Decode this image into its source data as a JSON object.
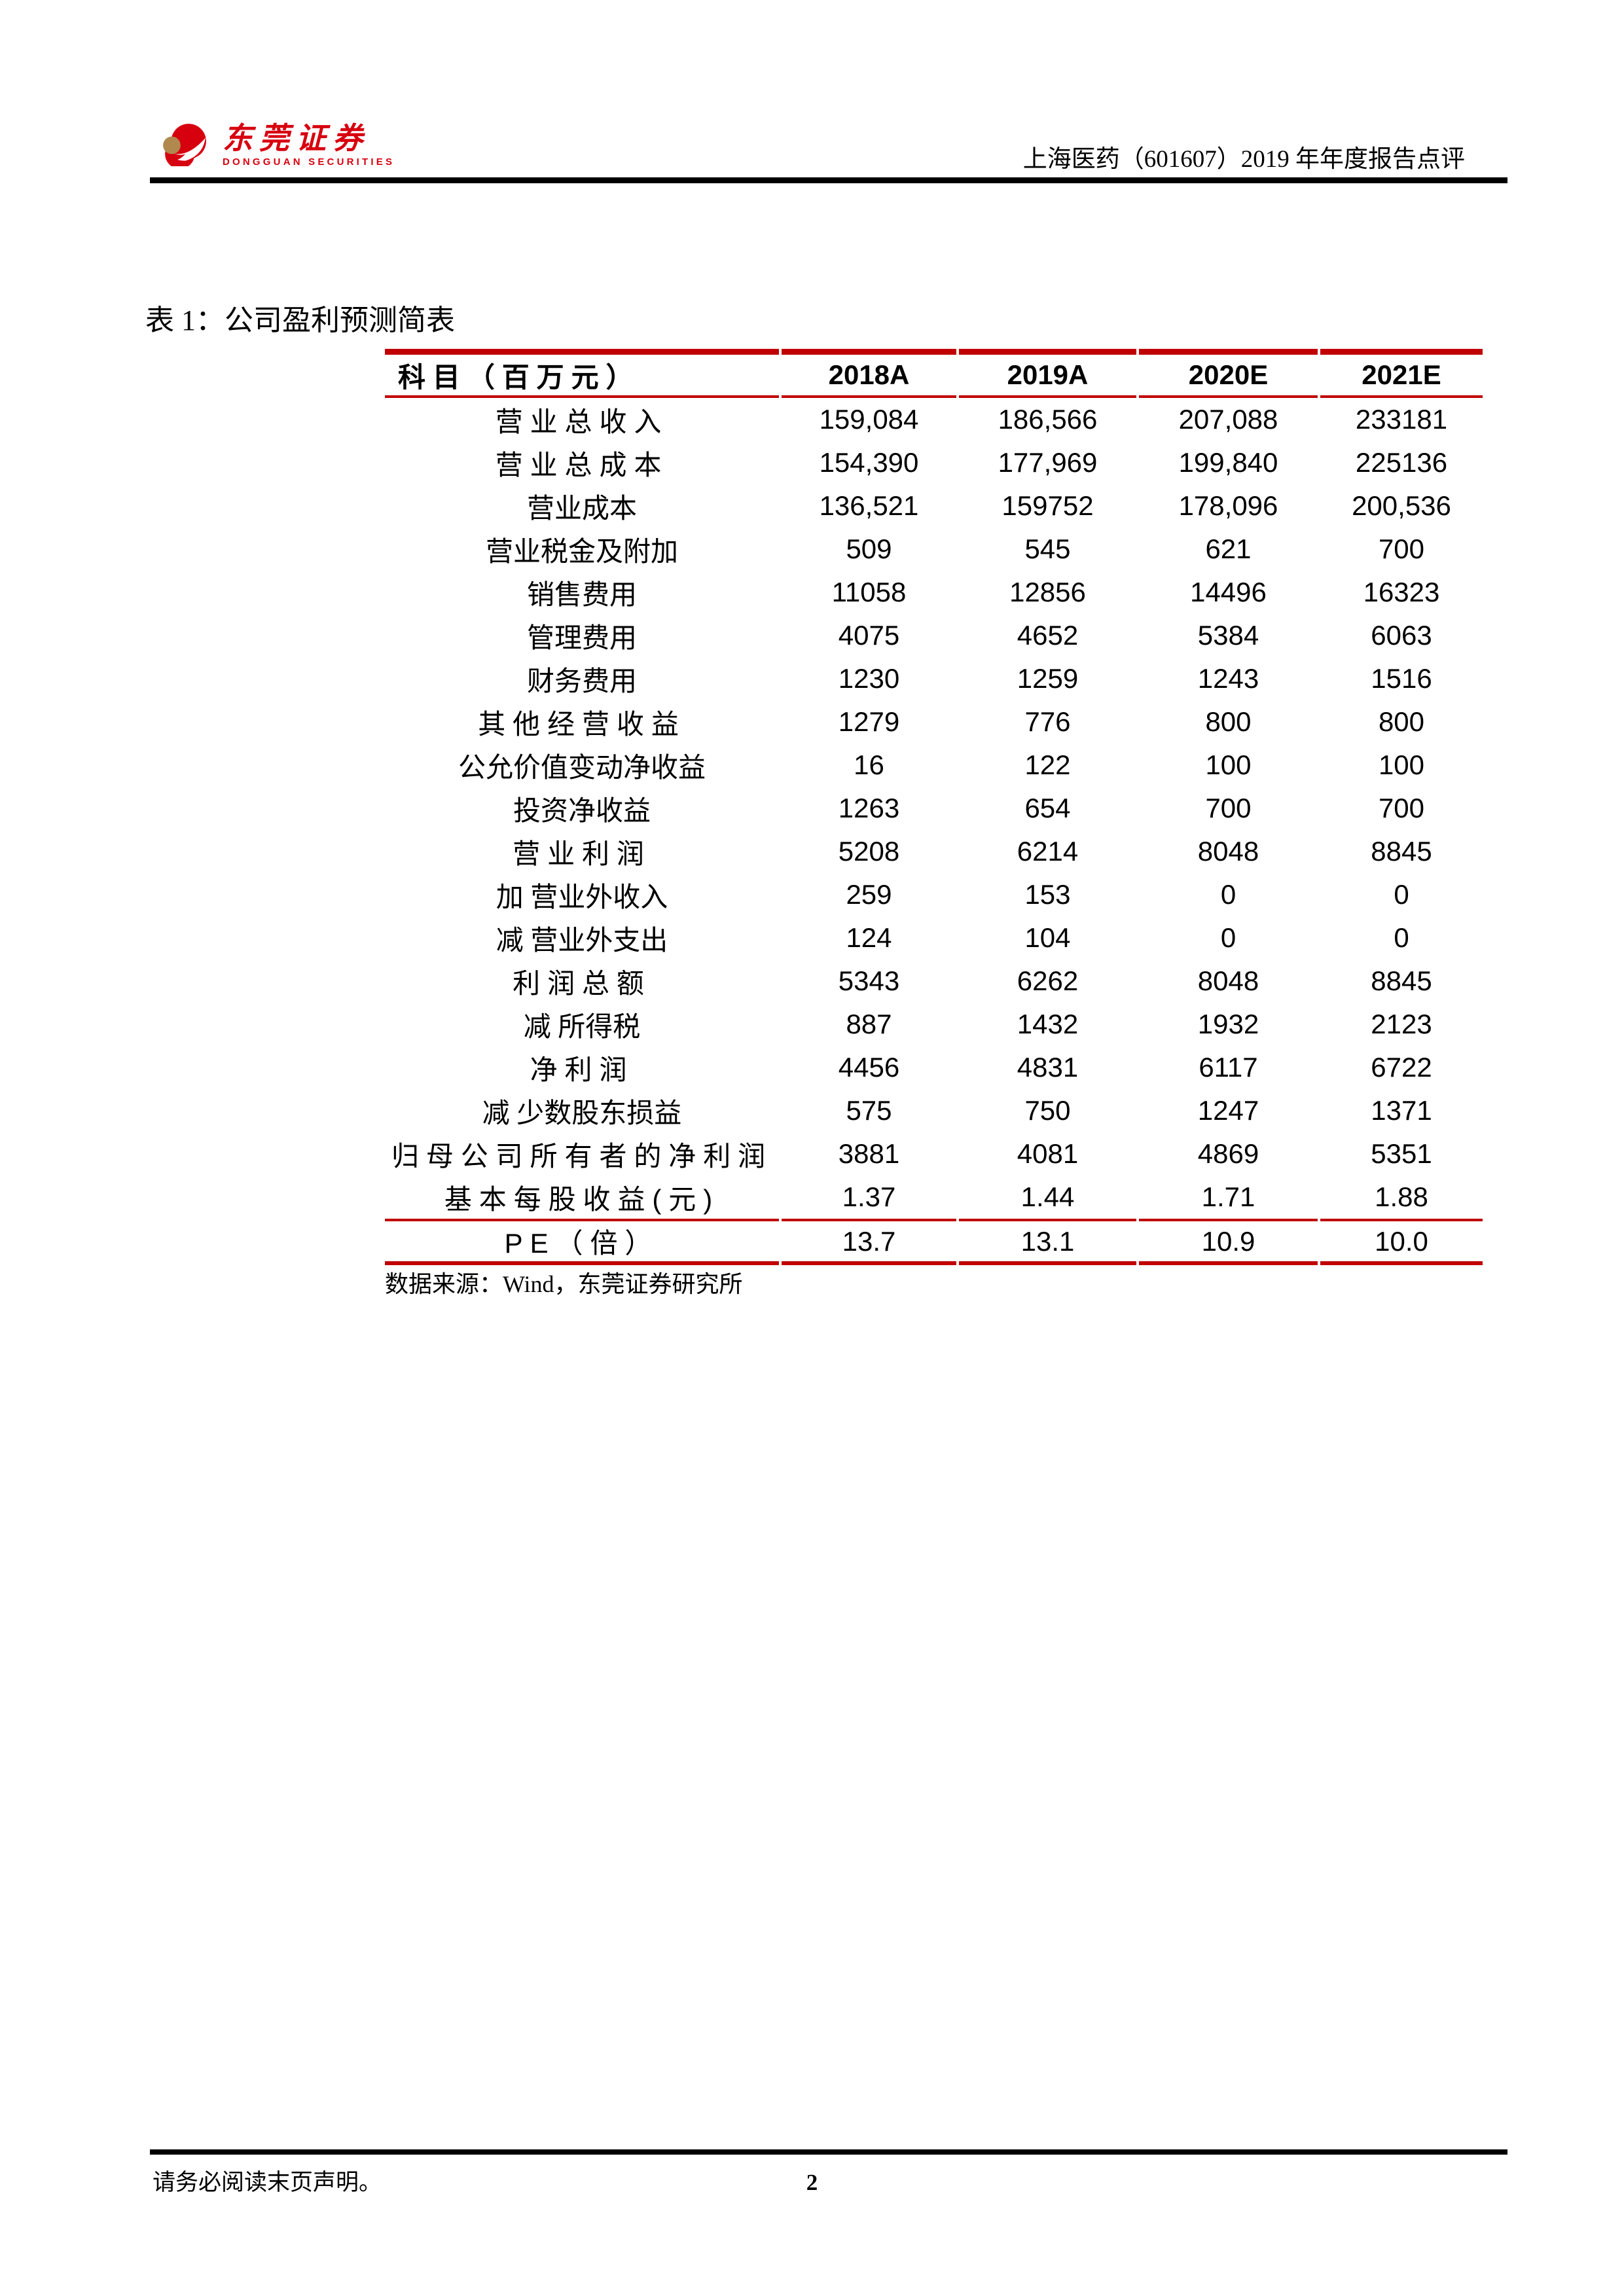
{
  "colors": {
    "accent_red": "#C00000",
    "logo_red": "#D7000F",
    "logo_gold": "#B1894E",
    "text_black": "#000000",
    "page_background": "#FFFFFF"
  },
  "header": {
    "logo_cn": "东莞证券",
    "logo_en": "DONGGUAN SECURITIES",
    "report_title": "上海医药（601607）2019 年年度报告点评"
  },
  "table": {
    "title": "表 1：公司盈利预测简表",
    "source": "数据来源：Wind，东莞证券研究所",
    "columns": [
      "科目（百万元）",
      "2018A",
      "2019A",
      "2020E",
      "2021E"
    ],
    "rows": [
      {
        "label": "营业总收入",
        "style": "bold",
        "values": [
          "159,084",
          "186,566",
          "207,088",
          "233181"
        ]
      },
      {
        "label": "营业总成本",
        "style": "bold",
        "values": [
          "154,390",
          "177,969",
          "199,840",
          "225136"
        ]
      },
      {
        "label": "营业成本",
        "style": "sub",
        "values": [
          "136,521",
          "159752",
          "178,096",
          "200,536"
        ]
      },
      {
        "label": "营业税金及附加",
        "style": "sub",
        "values": [
          "509",
          "545",
          "621",
          "700"
        ]
      },
      {
        "label": "销售费用",
        "style": "sub",
        "values": [
          "11058",
          "12856",
          "14496",
          "16323"
        ]
      },
      {
        "label": "管理费用",
        "style": "sub",
        "values": [
          "4075",
          "4652",
          "5384",
          "6063"
        ]
      },
      {
        "label": "财务费用",
        "style": "sub",
        "values": [
          "1230",
          "1259",
          "1243",
          "1516"
        ]
      },
      {
        "label": "其他经营收益",
        "style": "bold",
        "values": [
          "1279",
          "776",
          "800",
          "800"
        ]
      },
      {
        "label": "公允价值变动净收益",
        "style": "sub",
        "values": [
          "16",
          "122",
          "100",
          "100"
        ]
      },
      {
        "label": "投资净收益",
        "style": "sub",
        "values": [
          "1263",
          "654",
          "700",
          "700"
        ]
      },
      {
        "label": "营业利润",
        "style": "bold",
        "values": [
          "5208",
          "6214",
          "8048",
          "8845"
        ]
      },
      {
        "label": "加 营业外收入",
        "style": "sub",
        "values": [
          "259",
          "153",
          "0",
          "0"
        ]
      },
      {
        "label": "减 营业外支出",
        "style": "sub",
        "values": [
          "124",
          "104",
          "0",
          "0"
        ]
      },
      {
        "label": "利润总额",
        "style": "bold",
        "values": [
          "5343",
          "6262",
          "8048",
          "8845"
        ]
      },
      {
        "label": "减 所得税",
        "style": "sub",
        "values": [
          "887",
          "1432",
          "1932",
          "2123"
        ]
      },
      {
        "label": "净利润",
        "style": "bold",
        "values": [
          "4456",
          "4831",
          "6117",
          "6722"
        ]
      },
      {
        "label": "减 少数股东损益",
        "style": "sub",
        "values": [
          "575",
          "750",
          "1247",
          "1371"
        ]
      },
      {
        "label": "归母公司所有者的净利润",
        "style": "bold",
        "values": [
          "3881",
          "4081",
          "4869",
          "5351"
        ]
      },
      {
        "label": "基本每股收益(元)",
        "style": "bold",
        "values": [
          "1.37",
          "1.44",
          "1.71",
          "1.88"
        ]
      },
      {
        "label": "PE（倍）",
        "style": "bold",
        "pe": true,
        "values": [
          "13.7",
          "13.1",
          "10.9",
          "10.0"
        ]
      }
    ]
  },
  "footer": {
    "disclaimer": "请务必阅读末页声明。",
    "page_number": "2"
  }
}
